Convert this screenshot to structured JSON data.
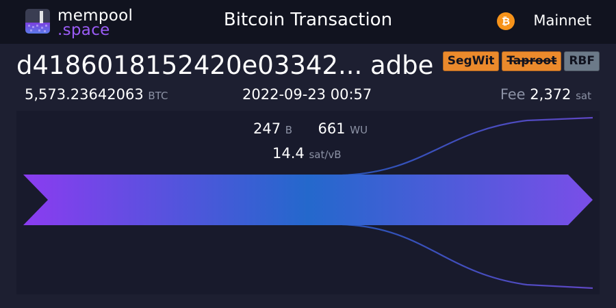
{
  "header": {
    "logo_line1": "mempool",
    "logo_line2": ".space",
    "title": "Bitcoin Transaction",
    "network_icon_symbol": "₿",
    "network_label": "Mainnet"
  },
  "transaction": {
    "txid_display": "d4186018152420e03342... adbe",
    "badges": {
      "segwit": "SegWit",
      "taproot": "Taproot",
      "rbf": "RBF"
    },
    "amount_value": "5,573.23642063",
    "amount_unit": "BTC",
    "timestamp": "2022-09-23 00:57",
    "fee_label": "Fee",
    "fee_value": "2,372",
    "fee_unit": "sat"
  },
  "stats": {
    "size_value": "247",
    "size_unit": "B",
    "weight_value": "661",
    "weight_unit": "WU",
    "feerate_value": "14.4",
    "feerate_unit": "sat/vB"
  },
  "flow": {
    "inputs": 1,
    "outputs": 3
  },
  "colors": {
    "header_bg": "#11131f",
    "page_bg": "#1d1f31",
    "panel_bg": "#181a2c",
    "accent_purple": "#9b5cf6",
    "accent_blue": "#2c6bd0",
    "badge_orange": "#eb8a2c",
    "badge_gray": "#6c7a89",
    "bitcoin_orange": "#f7931a"
  }
}
